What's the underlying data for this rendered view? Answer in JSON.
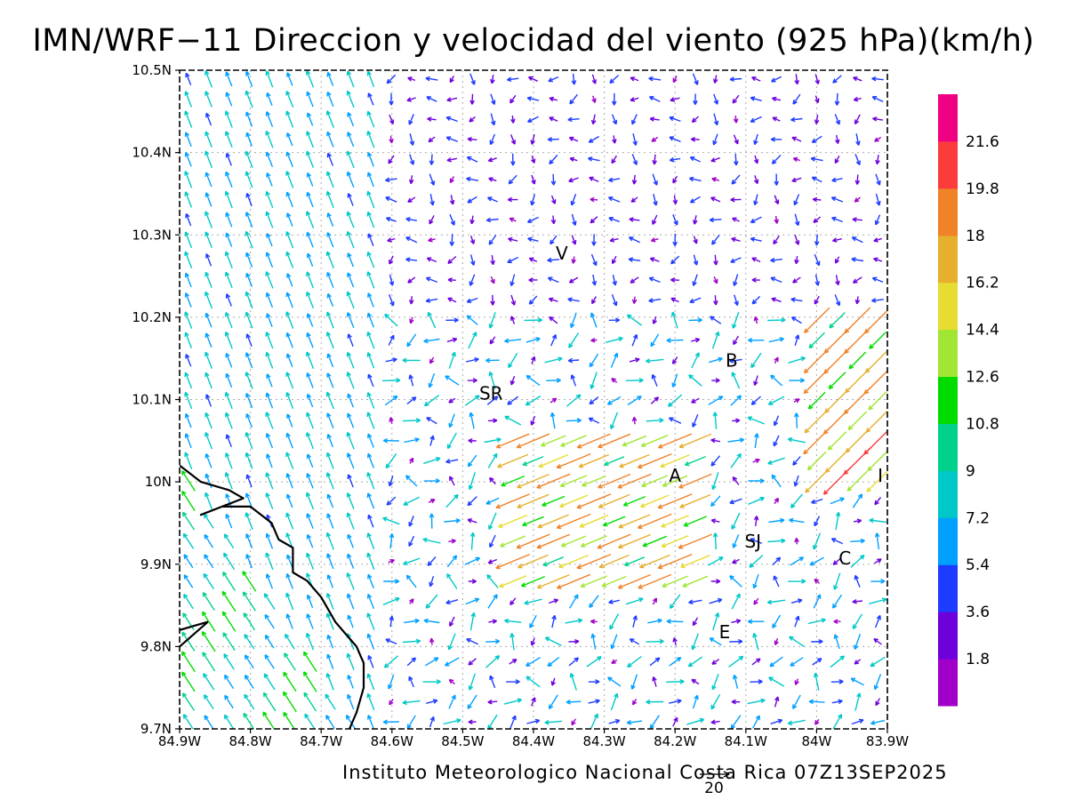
{
  "title": "IMN/WRF−11 Direccion y velocidad del viento (925 hPa)(km/h)",
  "footer": "Instituto Meteorologico Nacional Costa Rica 07Z13SEP2025",
  "reference_vector": {
    "label": "20",
    "value_kmh": 20
  },
  "map": {
    "lon_range": [
      -84.9,
      -83.9
    ],
    "lat_range": [
      9.7,
      10.5
    ],
    "x_ticks": [
      {
        "lon": -84.9,
        "label": "84.9W"
      },
      {
        "lon": -84.8,
        "label": "84.8W"
      },
      {
        "lon": -84.7,
        "label": "84.7W"
      },
      {
        "lon": -84.6,
        "label": "84.6W"
      },
      {
        "lon": -84.5,
        "label": "84.5W"
      },
      {
        "lon": -84.4,
        "label": "84.4W"
      },
      {
        "lon": -84.3,
        "label": "84.3W"
      },
      {
        "lon": -84.2,
        "label": "84.2W"
      },
      {
        "lon": -84.1,
        "label": "84.1W"
      },
      {
        "lon": -84.0,
        "label": "84W"
      },
      {
        "lon": -83.9,
        "label": "83.9W"
      }
    ],
    "y_ticks": [
      {
        "lat": 9.7,
        "label": "9.7N"
      },
      {
        "lat": 9.8,
        "label": "9.8N"
      },
      {
        "lat": 9.9,
        "label": "9.9N"
      },
      {
        "lat": 10.0,
        "label": "10N"
      },
      {
        "lat": 10.1,
        "label": "10.1N"
      },
      {
        "lat": 10.2,
        "label": "10.2N"
      },
      {
        "lat": 10.3,
        "label": "10.3N"
      },
      {
        "lat": 10.4,
        "label": "10.4N"
      },
      {
        "lat": 10.5,
        "label": "10.5N"
      }
    ],
    "stations": [
      {
        "label": "V",
        "lon": -84.36,
        "lat": 10.27
      },
      {
        "label": "B",
        "lon": -84.12,
        "lat": 10.14
      },
      {
        "label": "SR",
        "lon": -84.46,
        "lat": 10.1
      },
      {
        "label": "A",
        "lon": -84.2,
        "lat": 10.0
      },
      {
        "label": "I",
        "lon": -83.91,
        "lat": 10.0
      },
      {
        "label": "SJ",
        "lon": -84.09,
        "lat": 9.92
      },
      {
        "label": "C",
        "lon": -83.96,
        "lat": 9.9
      },
      {
        "label": "E",
        "lon": -84.13,
        "lat": 9.81
      }
    ],
    "coastline": [
      [
        -84.9,
        10.02
      ],
      [
        -84.87,
        10.0
      ],
      [
        -84.83,
        9.99
      ],
      [
        -84.81,
        9.98
      ],
      [
        -84.84,
        9.97
      ],
      [
        -84.87,
        9.96
      ],
      [
        -84.84,
        9.97
      ],
      [
        -84.8,
        9.97
      ],
      [
        -84.77,
        9.95
      ],
      [
        -84.76,
        9.93
      ],
      [
        -84.74,
        9.92
      ],
      [
        -84.74,
        9.89
      ],
      [
        -84.72,
        9.88
      ],
      [
        -84.7,
        9.86
      ],
      [
        -84.68,
        9.83
      ],
      [
        -84.66,
        9.81
      ],
      [
        -84.65,
        9.8
      ],
      [
        -84.64,
        9.78
      ],
      [
        -84.64,
        9.75
      ],
      [
        -84.65,
        9.72
      ],
      [
        -84.66,
        9.7
      ]
    ],
    "peninsula_tip": [
      [
        -84.9,
        9.82
      ],
      [
        -84.86,
        9.83
      ],
      [
        -84.9,
        9.8
      ]
    ]
  },
  "colorbar": {
    "levels": [
      "1.8",
      "3.6",
      "5.4",
      "7.2",
      "9",
      "10.8",
      "12.6",
      "14.4",
      "16.2",
      "18",
      "19.8",
      "21.6"
    ],
    "colors": [
      "#a000c8",
      "#6e00dc",
      "#1e3cff",
      "#00a0ff",
      "#00c8c8",
      "#00d28c",
      "#00dc00",
      "#a0e632",
      "#e6dc32",
      "#e6af2d",
      "#f08228",
      "#fa3c3c",
      "#f00082"
    ]
  }
}
